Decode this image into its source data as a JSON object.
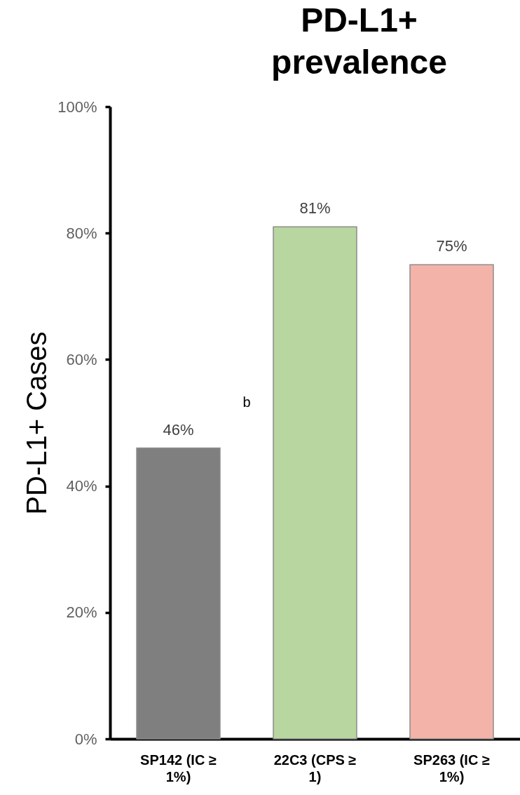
{
  "chart_data": {
    "type": "bar",
    "title": "PD-L1+ prevalence",
    "ylabel": "PD-L1+ Cases",
    "categories": [
      "SP142 (IC ≥ 1%)",
      "22C3 (CPS ≥ 1)",
      "SP263 (IC ≥ 1%)"
    ],
    "values": [
      46,
      81,
      75
    ],
    "colors": [
      "#7f7f7f",
      "#b8d6a0",
      "#f4b3a8"
    ],
    "value_labels": [
      "46%",
      "81%",
      "75%"
    ],
    "ylim": [
      0,
      100
    ],
    "yticks": [
      {
        "value": 0,
        "label": "0%"
      },
      {
        "value": 20,
        "label": "20%"
      },
      {
        "value": 40,
        "label": "40%"
      },
      {
        "value": 60,
        "label": "60%"
      },
      {
        "value": 80,
        "label": "80%"
      },
      {
        "value": 100,
        "label": "100%"
      }
    ],
    "grid": false,
    "legend": false,
    "annotations": [
      "b"
    ]
  }
}
